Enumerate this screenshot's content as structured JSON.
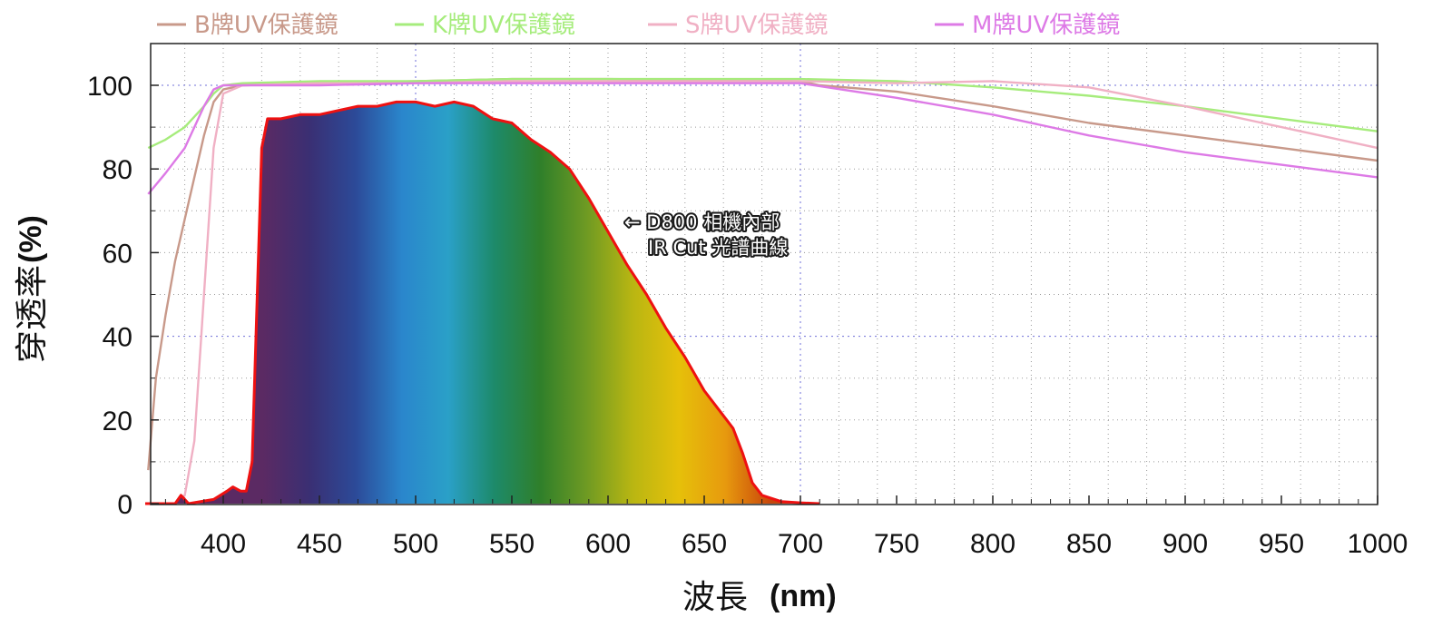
{
  "chart_data": {
    "type": "line",
    "xlabel": "波長",
    "xlabel_unit": "(nm)",
    "ylabel": "穿透率",
    "ylabel_unit": "(%)",
    "xlim": [
      360,
      1000
    ],
    "ylim": [
      0,
      110
    ],
    "x_ticks": [
      400,
      450,
      500,
      550,
      600,
      650,
      700,
      750,
      800,
      850,
      900,
      950,
      1000
    ],
    "y_ticks": [
      0,
      20,
      40,
      60,
      80,
      100
    ],
    "grid": "dotted, major blue-purple at 40/100 and 500/700/750",
    "legend_position": "top",
    "series": [
      {
        "name": "B牌UV保護鏡",
        "color": "#c8998a",
        "points": [
          [
            361,
            8
          ],
          [
            365,
            30
          ],
          [
            370,
            45
          ],
          [
            375,
            58
          ],
          [
            380,
            68
          ],
          [
            385,
            78
          ],
          [
            390,
            88
          ],
          [
            395,
            96
          ],
          [
            400,
            99
          ],
          [
            410,
            100
          ],
          [
            450,
            100.5
          ],
          [
            500,
            101
          ],
          [
            550,
            101.5
          ],
          [
            600,
            101.5
          ],
          [
            650,
            101.3
          ],
          [
            700,
            101
          ],
          [
            710,
            100
          ],
          [
            750,
            98.5
          ],
          [
            800,
            95
          ],
          [
            850,
            91
          ],
          [
            900,
            88
          ],
          [
            950,
            85
          ],
          [
            1000,
            82
          ]
        ]
      },
      {
        "name": "K牌UV保護鏡",
        "color": "#a6ec7c",
        "points": [
          [
            361,
            85
          ],
          [
            370,
            87
          ],
          [
            380,
            90
          ],
          [
            390,
            95
          ],
          [
            395,
            98
          ],
          [
            400,
            100
          ],
          [
            410,
            100.5
          ],
          [
            450,
            101
          ],
          [
            500,
            101
          ],
          [
            550,
            101.5
          ],
          [
            600,
            101.5
          ],
          [
            650,
            101.5
          ],
          [
            700,
            101.5
          ],
          [
            750,
            101
          ],
          [
            800,
            99.5
          ],
          [
            850,
            97.5
          ],
          [
            900,
            95
          ],
          [
            950,
            92
          ],
          [
            1000,
            89
          ]
        ]
      },
      {
        "name": "S牌UV保護鏡",
        "color": "#f0b0c4",
        "points": [
          [
            361,
            0
          ],
          [
            375,
            0
          ],
          [
            380,
            2
          ],
          [
            385,
            15
          ],
          [
            390,
            50
          ],
          [
            395,
            85
          ],
          [
            400,
            98
          ],
          [
            410,
            100
          ],
          [
            450,
            100.5
          ],
          [
            500,
            100.5
          ],
          [
            550,
            101
          ],
          [
            600,
            101
          ],
          [
            650,
            101
          ],
          [
            700,
            101
          ],
          [
            750,
            100.5
          ],
          [
            800,
            101
          ],
          [
            850,
            99.5
          ],
          [
            900,
            95
          ],
          [
            950,
            90
          ],
          [
            1000,
            85
          ]
        ]
      },
      {
        "name": "M牌UV保護鏡",
        "color": "#dd7ae6",
        "points": [
          [
            361,
            74
          ],
          [
            370,
            79
          ],
          [
            380,
            85
          ],
          [
            390,
            95
          ],
          [
            395,
            99
          ],
          [
            400,
            100
          ],
          [
            410,
            100
          ],
          [
            450,
            100
          ],
          [
            500,
            100.5
          ],
          [
            550,
            100.5
          ],
          [
            600,
            100.5
          ],
          [
            650,
            100.5
          ],
          [
            700,
            100.5
          ],
          [
            750,
            97
          ],
          [
            800,
            93
          ],
          [
            850,
            88
          ],
          [
            900,
            84
          ],
          [
            950,
            81
          ],
          [
            1000,
            78
          ]
        ]
      },
      {
        "name": "D800 相機內部 IR Cut 光譜曲線",
        "color": "#ee1111",
        "points": [
          [
            356,
            0
          ],
          [
            375,
            0
          ],
          [
            378,
            2
          ],
          [
            382,
            0
          ],
          [
            395,
            1
          ],
          [
            402,
            3
          ],
          [
            405,
            4
          ],
          [
            409,
            3
          ],
          [
            412,
            3
          ],
          [
            415,
            10
          ],
          [
            418,
            55
          ],
          [
            420,
            85
          ],
          [
            423,
            92
          ],
          [
            430,
            92
          ],
          [
            440,
            93
          ],
          [
            450,
            93
          ],
          [
            460,
            94
          ],
          [
            470,
            95
          ],
          [
            480,
            95
          ],
          [
            490,
            96
          ],
          [
            500,
            96
          ],
          [
            510,
            95
          ],
          [
            520,
            96
          ],
          [
            530,
            95
          ],
          [
            540,
            92
          ],
          [
            550,
            91
          ],
          [
            560,
            87
          ],
          [
            570,
            84
          ],
          [
            580,
            80
          ],
          [
            590,
            73
          ],
          [
            600,
            65
          ],
          [
            610,
            57
          ],
          [
            620,
            50
          ],
          [
            630,
            42
          ],
          [
            640,
            35
          ],
          [
            650,
            27
          ],
          [
            660,
            21
          ],
          [
            665,
            18
          ],
          [
            670,
            12
          ],
          [
            675,
            5
          ],
          [
            680,
            2
          ],
          [
            690,
            0.5
          ],
          [
            700,
            0.2
          ],
          [
            710,
            0
          ]
        ]
      }
    ],
    "annotation": {
      "lines": [
        "← D800 相機內部",
        "IR Cut 光譜曲線"
      ],
      "x": 610,
      "y": 67
    }
  },
  "colors": {
    "ir_cut_gradient": [
      "#5b2a63",
      "#3a2f73",
      "#2c4a98",
      "#2a86cc",
      "#2aa0c8",
      "#1d8a6a",
      "#2f7f2a",
      "#6e9a23",
      "#b9b612",
      "#e6c00a",
      "#e79a0e",
      "#c8450b"
    ]
  }
}
